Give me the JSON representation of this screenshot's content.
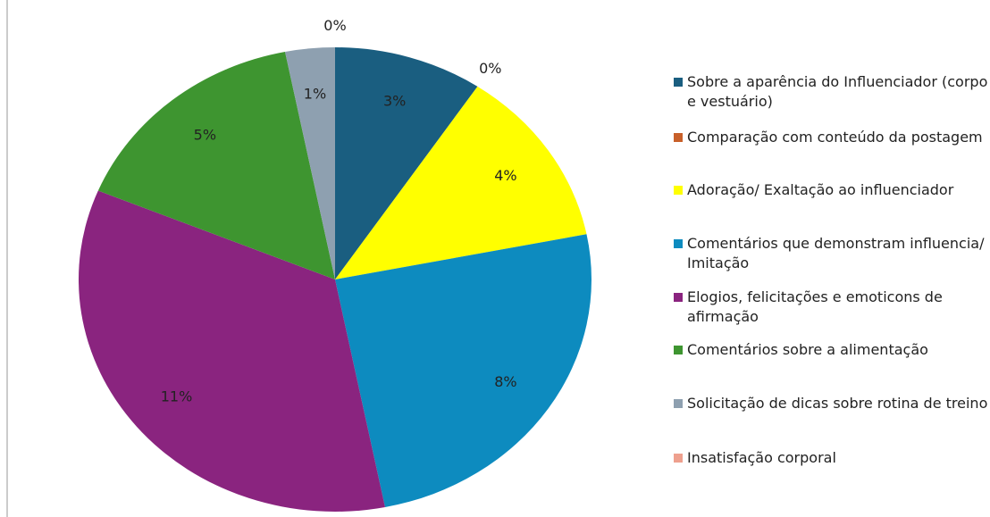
{
  "chart_data": {
    "type": "pie",
    "categories": [
      "Sobre a aparência do Influenciador (corpo e vestuário)",
      "Comparação com conteúdo da postagem",
      "Adoração/ Exaltação ao influenciador",
      "Comentários que demonstram influencia/ Imitação",
      "Elogios, felicitações e emoticons de afirmação",
      "Comentários sobre a alimentação",
      "Solicitação de dicas sobre rotina de treino",
      "Insatisfação corporal"
    ],
    "values": [
      3,
      0,
      4,
      8,
      11,
      5,
      1,
      0
    ],
    "value_labels": [
      "3%",
      "0%",
      "4%",
      "8%",
      "11%",
      "5%",
      "1%",
      "0%"
    ],
    "colors": [
      "#1a5e80",
      "#c8602a",
      "#ffff00",
      "#0d8bbf",
      "#8a247f",
      "#3e9530",
      "#8ea0b0",
      "#eea08e"
    ],
    "legend": "right"
  }
}
